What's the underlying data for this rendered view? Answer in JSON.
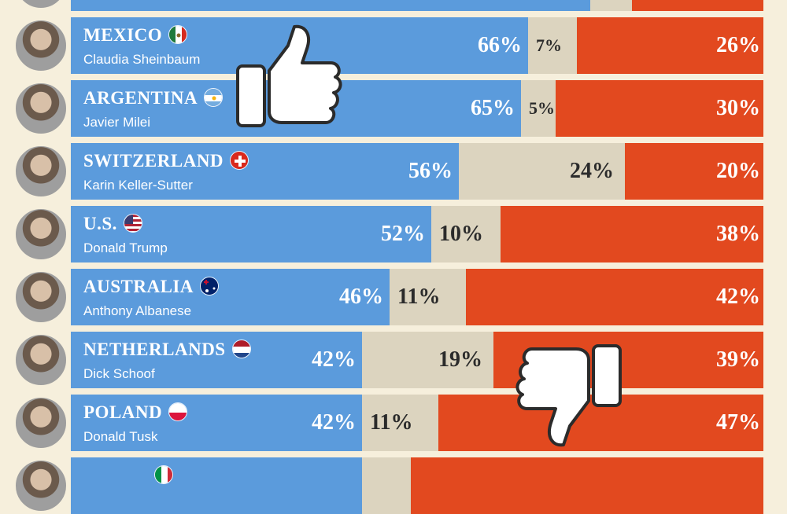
{
  "chart_data": {
    "type": "bar",
    "stacked": true,
    "orientation": "horizontal",
    "series_colors": {
      "approve": "#5b9bdc",
      "neutral": "#dcd4bf",
      "disapprove": "#e2491f"
    },
    "rows": [
      {
        "country": "",
        "leader": "",
        "approve": null,
        "neutral": null,
        "disapprove": null,
        "partial": "top",
        "flag": "none"
      },
      {
        "country": "MEXICO",
        "leader": "Claudia Sheinbaum",
        "approve": 66,
        "neutral": 7,
        "disapprove": 26,
        "flag": "mexico-flag-icon"
      },
      {
        "country": "ARGENTINA",
        "leader": "Javier Milei",
        "approve": 65,
        "neutral": 5,
        "disapprove": 30,
        "flag": "argentina-flag-icon"
      },
      {
        "country": "SWITZERLAND",
        "leader": "Karin Keller-Sutter",
        "approve": 56,
        "neutral": 24,
        "disapprove": 20,
        "flag": "switzerland-flag-icon"
      },
      {
        "country": "U.S.",
        "leader": "Donald Trump",
        "approve": 52,
        "neutral": 10,
        "disapprove": 38,
        "flag": "usa-flag-icon"
      },
      {
        "country": "AUSTRALIA",
        "leader": "Anthony Albanese",
        "approve": 46,
        "neutral": 11,
        "disapprove": 42,
        "flag": "australia-flag-icon"
      },
      {
        "country": "NETHERLANDS",
        "leader": "Dick Schoof",
        "approve": 42,
        "neutral": 19,
        "disapprove": 39,
        "flag": "netherlands-flag-icon"
      },
      {
        "country": "POLAND",
        "leader": "Donald Tusk",
        "approve": 42,
        "neutral": 11,
        "disapprove": 47,
        "flag": "poland-flag-icon"
      },
      {
        "country": "",
        "leader": "",
        "approve": 42,
        "neutral": 7,
        "disapprove": 51,
        "partial": "bottom",
        "flag": "italy-flag-icon"
      }
    ],
    "labels": {
      "MEXICO": [
        "66%",
        "7%",
        "26%"
      ],
      "ARGENTINA": [
        "65%",
        "5%",
        "30%"
      ],
      "SWITZERLAND": [
        "56%",
        "24%",
        "20%"
      ],
      "U.S.": [
        "52%",
        "10%",
        "38%"
      ],
      "AUSTRALIA": [
        "46%",
        "11%",
        "42%"
      ],
      "NETHERLANDS": [
        "42%",
        "19%",
        "39%"
      ],
      "POLAND": [
        "42%",
        "11%",
        "47%"
      ]
    },
    "icons": [
      "thumbs-up-icon",
      "thumbs-down-icon"
    ]
  }
}
